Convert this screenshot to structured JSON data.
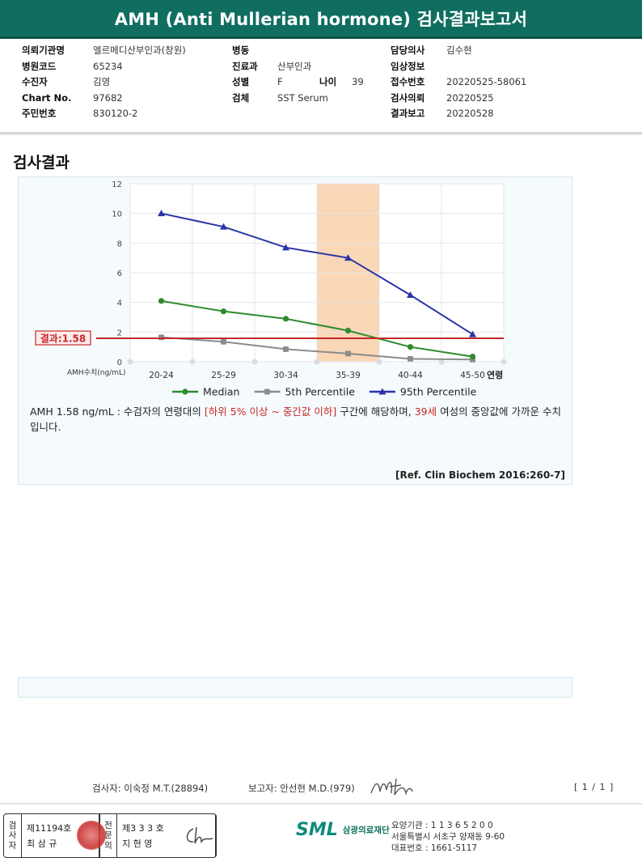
{
  "report_title": "AMH (Anti Mullerian hormone) 검사결과보고서",
  "info": {
    "left": [
      {
        "label": "의뢰기관명",
        "value": "엘르메디산부인과(창원)"
      },
      {
        "label": "병원코드",
        "value": "65234"
      },
      {
        "label": "수진자",
        "value": "김영"
      },
      {
        "label": "Chart No.",
        "value": "97682"
      },
      {
        "label": "주민번호",
        "value": "830120-2"
      }
    ],
    "mid": {
      "ward_label": "병동",
      "ward_value": "",
      "dept_label": "진료과",
      "dept_value": "산부인과",
      "sex_label": "성별",
      "sex_value": "F",
      "age_label": "나이",
      "age_value": "39",
      "specimen_label": "검체",
      "specimen_value": "SST Serum"
    },
    "right": [
      {
        "label": "담당의사",
        "value": "김수현"
      },
      {
        "label": "임상정보",
        "value": ""
      },
      {
        "label": "접수번호",
        "value": "20220525-58061"
      },
      {
        "label": "검사의뢰",
        "value": "20220525"
      },
      {
        "label": "결과보고",
        "value": "20220528"
      }
    ]
  },
  "section_title": "검사결과",
  "chart_data": {
    "type": "line",
    "categories": [
      "20-24",
      "25-29",
      "30-34",
      "35-39",
      "40-44",
      "45-50"
    ],
    "x_axis_label": "AMH수치(ng/mL)",
    "x_axis_suffix": "연령",
    "ylim": [
      0,
      12
    ],
    "y_ticks": [
      0,
      2,
      4,
      6,
      8,
      10,
      12
    ],
    "grid": true,
    "legend_position": "bottom",
    "highlight_category": "35-39",
    "series": [
      {
        "name": "Median",
        "values": [
          4.1,
          3.4,
          2.9,
          2.1,
          1.0,
          0.35
        ],
        "color": "#2e8b2e",
        "marker": "circle"
      },
      {
        "name": "5th Percentile",
        "values": [
          1.65,
          1.35,
          0.85,
          0.55,
          0.2,
          0.15
        ],
        "color": "#8c8c8c",
        "marker": "square"
      },
      {
        "name": "95th Percentile",
        "values": [
          10.0,
          9.1,
          7.7,
          7.0,
          4.5,
          1.85
        ],
        "color": "#2b35a8",
        "marker": "triangle"
      }
    ],
    "result_line": {
      "label": "결과:1.58",
      "value": 1.58,
      "color": "#c62828"
    }
  },
  "description": {
    "part1": "AMH  1.58 ng/mL : 수검자의 연령대의 ",
    "red1": "[하위 5% 이상 ~ 중간값 이하]",
    "part2": "  구간에 해당하며, ",
    "red2": "39세",
    "part3": " 여성의 중앙값에 가까운 수치입니다."
  },
  "reference": "[Ref. Clin Biochem 2016:260-7]",
  "signatures": {
    "tester": "검사자: 이숙정 M.T.(28894)",
    "reporter": "보고자: 안선현 M.D.(979)",
    "page": "[ 1 / 1 ]"
  },
  "stamp": {
    "tester_vertical": "검사자",
    "tester_no": "제11194호",
    "tester_name": "최 삼 규",
    "specialist_vertical": "전문의",
    "specialist_no": "제3 3 3 호",
    "specialist_name": "지 현 영"
  },
  "org": {
    "logo": "SML",
    "name": "삼광의료재단",
    "line1": "요양기관 : 1 1 3 6 5 2 0 0",
    "line2": "서울특별시 서초구 양재동 9-60",
    "line3": "대표번호 : 1661-5117"
  }
}
